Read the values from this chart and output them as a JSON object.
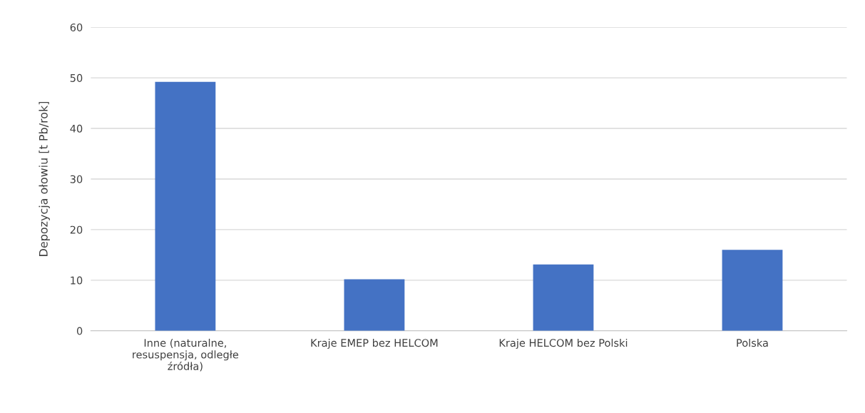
{
  "chart_data": {
    "type": "bar",
    "ylabel": "Depozycja ołowiu [t Pb/rok]",
    "categories": [
      "Inne (naturalne, resuspensja, odległe źródła)",
      "Kraje EMEP bez HELCOM",
      "Kraje HELCOM bez Polski",
      "Polska"
    ],
    "values": [
      49.2,
      10.2,
      13.1,
      16.0
    ],
    "color": "#4472c4",
    "ylim": [
      0,
      60
    ],
    "yticks": [
      0,
      10,
      20,
      30,
      40,
      50,
      60
    ],
    "grid": "y"
  }
}
